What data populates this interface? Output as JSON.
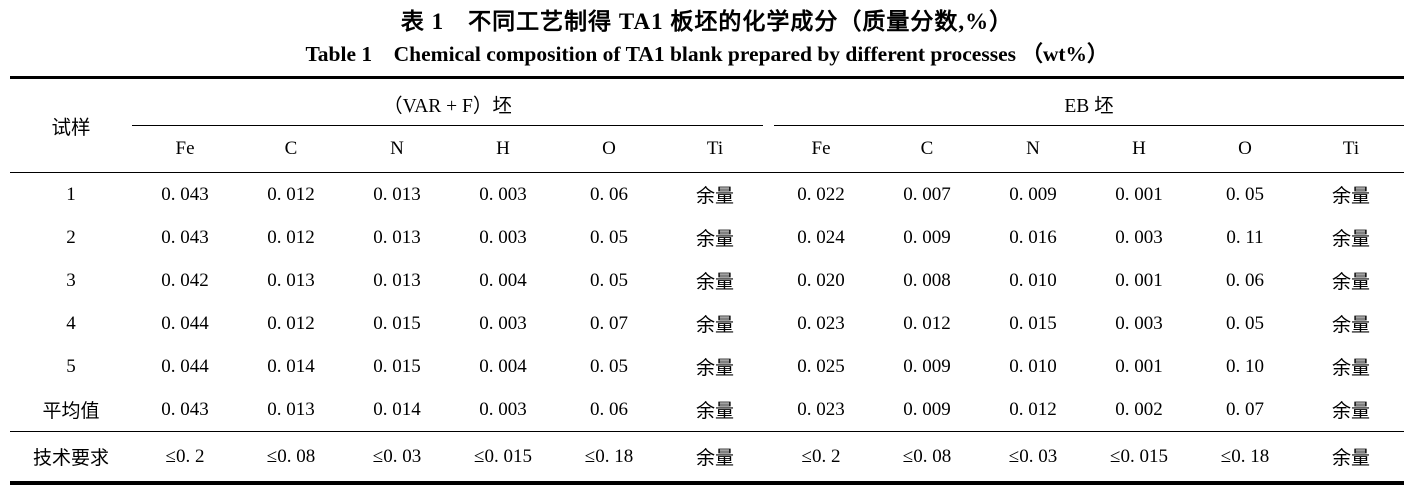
{
  "title": {
    "zh": "表 1　不同工艺制得 TA1 板坯的化学成分（质量分数,%）",
    "en": "Table 1　Chemical composition of TA1 blank prepared by different processes （wt%）"
  },
  "table": {
    "sample_header": "试样",
    "groups": [
      {
        "label": "（VAR + F）坯",
        "columns": [
          "Fe",
          "C",
          "N",
          "H",
          "O",
          "Ti"
        ]
      },
      {
        "label": "EB 坯",
        "columns": [
          "Fe",
          "C",
          "N",
          "H",
          "O",
          "Ti"
        ]
      }
    ],
    "rows": [
      {
        "sample": "1",
        "var_f": [
          "0. 043",
          "0. 012",
          "0. 013",
          "0. 003",
          "0. 06",
          "余量"
        ],
        "eb": [
          "0. 022",
          "0. 007",
          "0. 009",
          "0. 001",
          "0. 05",
          "余量"
        ]
      },
      {
        "sample": "2",
        "var_f": [
          "0. 043",
          "0. 012",
          "0. 013",
          "0. 003",
          "0. 05",
          "余量"
        ],
        "eb": [
          "0. 024",
          "0. 009",
          "0. 016",
          "0. 003",
          "0. 11",
          "余量"
        ]
      },
      {
        "sample": "3",
        "var_f": [
          "0. 042",
          "0. 013",
          "0. 013",
          "0. 004",
          "0. 05",
          "余量"
        ],
        "eb": [
          "0. 020",
          "0. 008",
          "0. 010",
          "0. 001",
          "0. 06",
          "余量"
        ]
      },
      {
        "sample": "4",
        "var_f": [
          "0. 044",
          "0. 012",
          "0. 015",
          "0. 003",
          "0. 07",
          "余量"
        ],
        "eb": [
          "0. 023",
          "0. 012",
          "0. 015",
          "0. 003",
          "0. 05",
          "余量"
        ]
      },
      {
        "sample": "5",
        "var_f": [
          "0. 044",
          "0. 014",
          "0. 015",
          "0. 004",
          "0. 05",
          "余量"
        ],
        "eb": [
          "0. 025",
          "0. 009",
          "0. 010",
          "0. 001",
          "0. 10",
          "余量"
        ]
      },
      {
        "sample": "平均值",
        "var_f": [
          "0. 043",
          "0. 013",
          "0. 014",
          "0. 003",
          "0. 06",
          "余量"
        ],
        "eb": [
          "0. 023",
          "0. 009",
          "0. 012",
          "0. 002",
          "0. 07",
          "余量"
        ]
      },
      {
        "sample": "技术要求",
        "var_f": [
          "≤0. 2",
          "≤0. 08",
          "≤0. 03",
          "≤0. 015",
          "≤0. 18",
          "余量"
        ],
        "eb": [
          "≤0. 2",
          "≤0. 08",
          "≤0. 03",
          "≤0. 015",
          "≤0. 18",
          "余量"
        ]
      }
    ]
  },
  "colors": {
    "background": "#ffffff",
    "text": "#000000",
    "rule": "#000000"
  }
}
